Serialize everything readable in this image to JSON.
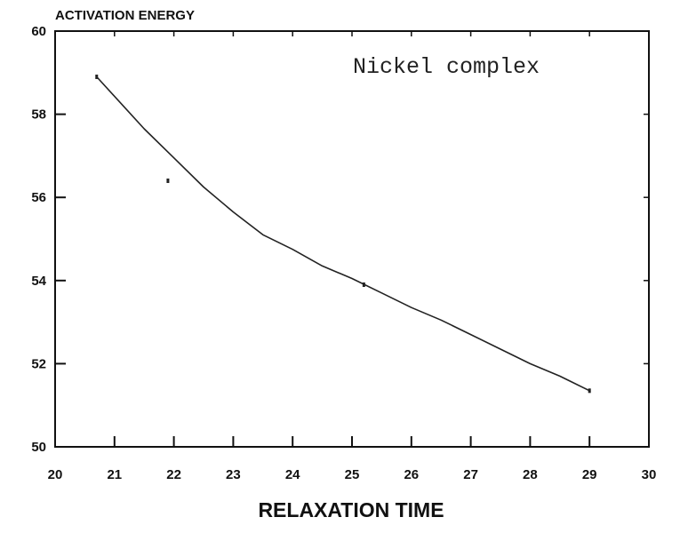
{
  "chart_data": {
    "type": "scatter",
    "title": "",
    "ylabel": "ACTIVATION ENERGY",
    "xlabel": "RELAXATION TIME",
    "annotation": "Nickel complex",
    "xlim": [
      20,
      30
    ],
    "ylim": [
      50,
      60
    ],
    "x_ticks": [
      20,
      21,
      22,
      23,
      24,
      25,
      26,
      27,
      28,
      29,
      30
    ],
    "x_tick_labels": [
      "20",
      "21",
      "22",
      "23",
      "24",
      "25",
      "26",
      "27",
      "28",
      "29",
      "30"
    ],
    "y_ticks": [
      50,
      52,
      54,
      56,
      58,
      60
    ],
    "y_tick_labels": [
      "50",
      "52",
      "54",
      "56",
      "58",
      "60"
    ],
    "grid": false,
    "series": [
      {
        "points": [
          {
            "x": 20.7,
            "y": 58.9
          },
          {
            "x": 21.9,
            "y": 56.4
          },
          {
            "x": 25.2,
            "y": 53.9
          },
          {
            "x": 29.0,
            "y": 51.35
          }
        ]
      }
    ],
    "fit_curve": {
      "x": [
        20.7,
        21.5,
        22.0,
        22.5,
        23.0,
        23.5,
        24.0,
        24.5,
        25.0,
        25.5,
        26.0,
        26.5,
        27.0,
        27.5,
        28.0,
        28.5,
        29.0
      ],
      "y": [
        58.9,
        57.65,
        56.95,
        56.25,
        55.65,
        55.1,
        54.75,
        54.35,
        54.05,
        53.7,
        53.35,
        53.05,
        52.7,
        52.35,
        52.0,
        51.7,
        51.35
      ]
    },
    "colors": {
      "axis": "#111111",
      "curve": "#222222",
      "points": "#222222"
    }
  }
}
